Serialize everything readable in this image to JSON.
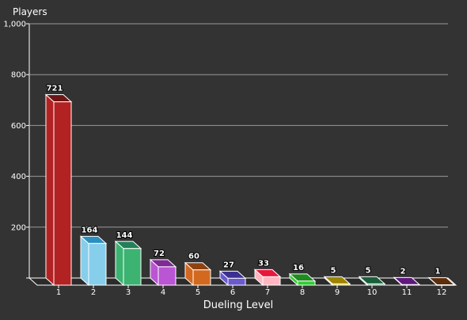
{
  "chart_data": {
    "type": "bar",
    "style": "3d",
    "title": "",
    "ylabel": "Players",
    "xlabel": "Dueling Level",
    "ylim": [
      0,
      1000
    ],
    "yticks": [
      0,
      200,
      400,
      600,
      800,
      1000
    ],
    "ytick_labels": [
      "",
      "200",
      "400",
      "600",
      "800",
      "1,000"
    ],
    "grid": true,
    "legend": "none",
    "categories": [
      "1",
      "2",
      "3",
      "4",
      "5",
      "6",
      "7",
      "8",
      "9",
      "10",
      "11",
      "12"
    ],
    "values": [
      721,
      164,
      144,
      72,
      60,
      27,
      33,
      16,
      5,
      5,
      2,
      1
    ],
    "data_labels": [
      "721",
      "164",
      "144",
      "72",
      "60",
      "27",
      "33",
      "16",
      "5",
      "5",
      "2",
      "1"
    ],
    "colors": [
      "#b22222",
      "#87ceeb",
      "#3cb371",
      "#ba55d3",
      "#d2691e",
      "#6a5acd",
      "#ffb6c1",
      "#32cd32",
      "#e6c200",
      "#2e8b57",
      "#9932cc",
      "#8b4513"
    ],
    "colors_dark": [
      "#6e1515",
      "#2b8fc0",
      "#23805a",
      "#7f2a97",
      "#8e420f",
      "#3b2f8f",
      "#e8173c",
      "#1f8c1f",
      "#9c8300",
      "#1a5e3a",
      "#60197f",
      "#5e2d0b"
    ]
  },
  "background": "#333333",
  "text_color": "#ffffff",
  "grid_color": "#9a9a9a"
}
